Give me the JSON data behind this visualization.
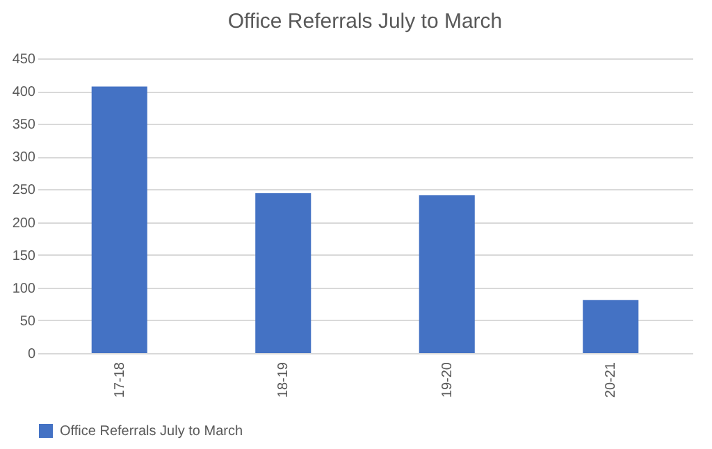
{
  "chart_data": {
    "type": "bar",
    "title": "Office Referrals July to March",
    "categories": [
      "17-18",
      "18-19",
      "19-20",
      "20-21"
    ],
    "series": [
      {
        "name": "Office Referrals July to March",
        "color": "#4472c4",
        "values": [
          407,
          244,
          241,
          81
        ]
      }
    ],
    "ylim": [
      0,
      450
    ],
    "yticks": [
      0,
      50,
      100,
      150,
      200,
      250,
      300,
      350,
      400,
      450
    ],
    "grid": "y",
    "legend": "bottom"
  }
}
